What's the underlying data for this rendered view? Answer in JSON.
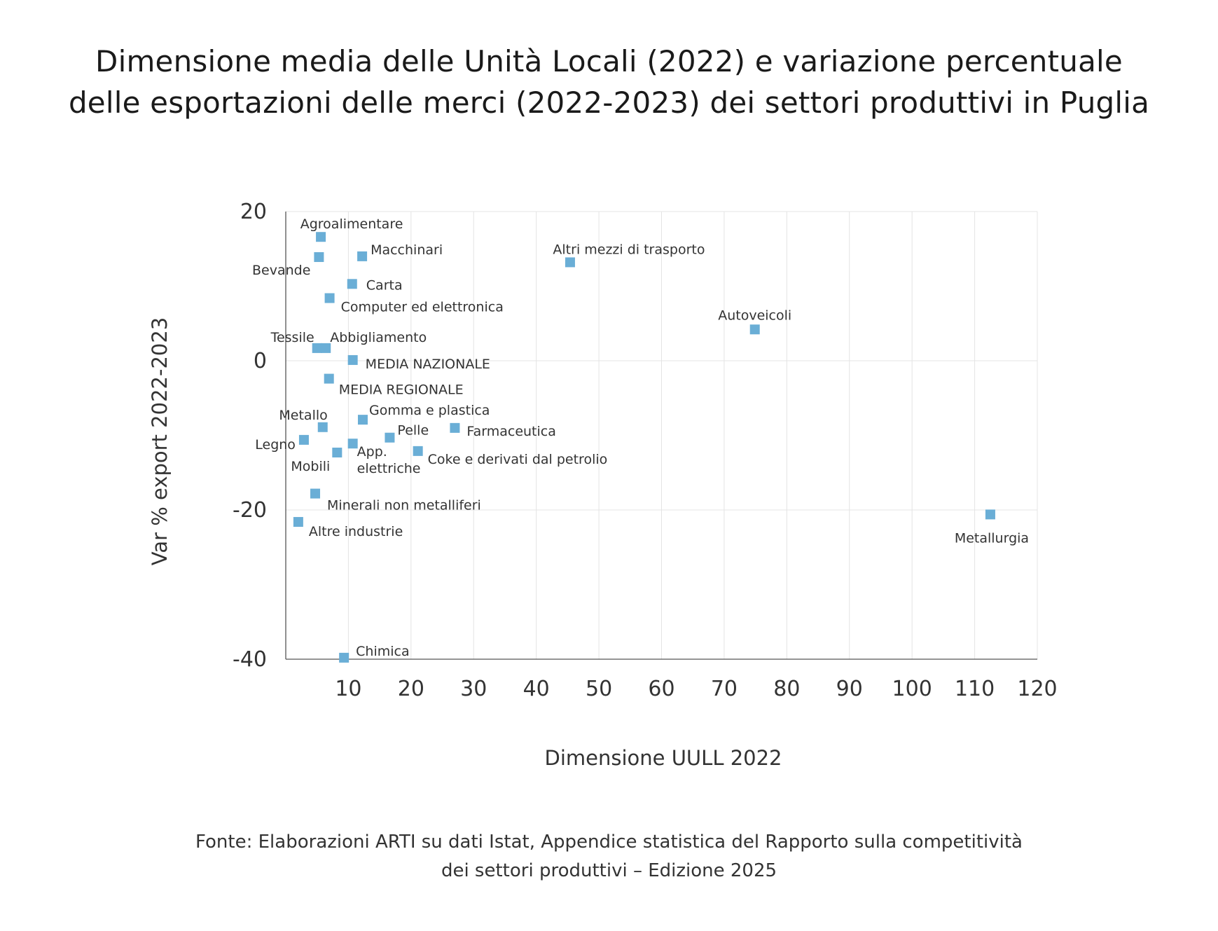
{
  "chart_data": {
    "type": "scatter",
    "title_lines": [
      "Dimensione media delle Unità Locali (2022) e variazione percentuale",
      "delle esportazioni delle merci (2022-2023) dei settori produttivi in Puglia"
    ],
    "xlabel": "Dimensione UULL 2022",
    "ylabel": "Var % export 2022-2023",
    "xlim": [
      0,
      120
    ],
    "ylim": [
      -40,
      20
    ],
    "x_ticks": [
      10,
      20,
      30,
      40,
      50,
      60,
      70,
      80,
      90,
      100,
      110,
      120
    ],
    "y_ticks": [
      20,
      0,
      -20,
      -40
    ],
    "grid": true,
    "marker_color": "#6aaed6",
    "points": [
      {
        "label": "Agroalimentare",
        "x": 5.6,
        "y": 16.6
      },
      {
        "label": "Bevande",
        "x": 5.3,
        "y": 13.9
      },
      {
        "label": "Macchinari",
        "x": 12.2,
        "y": 14.0
      },
      {
        "label": "Altri mezzi di trasporto",
        "x": 45.4,
        "y": 13.2
      },
      {
        "label": "Carta",
        "x": 10.6,
        "y": 10.3
      },
      {
        "label": "Computer ed elettronica",
        "x": 7.0,
        "y": 8.4
      },
      {
        "label": "Autoveicoli",
        "x": 74.9,
        "y": 4.2
      },
      {
        "label": "Tessile",
        "x": 5.0,
        "y": 1.7
      },
      {
        "label": "Abbigliamento",
        "x": 6.4,
        "y": 1.7
      },
      {
        "label": "MEDIA NAZIONALE",
        "x": 10.7,
        "y": 0.1
      },
      {
        "label": "MEDIA REGIONALE",
        "x": 6.9,
        "y": -2.4
      },
      {
        "label": "Gomma e plastica",
        "x": 12.3,
        "y": -7.9
      },
      {
        "label": "Metallo",
        "x": 5.9,
        "y": -8.9
      },
      {
        "label": "Pelle",
        "x": 16.6,
        "y": -10.3
      },
      {
        "label": "Farmaceutica",
        "x": 27.0,
        "y": -9.0
      },
      {
        "label": "Legno",
        "x": 2.9,
        "y": -10.6
      },
      {
        "label": "App. elettriche",
        "x": 10.7,
        "y": -11.1
      },
      {
        "label": "Mobili",
        "x": 8.2,
        "y": -12.3
      },
      {
        "label": "Coke e derivati dal petrolio",
        "x": 21.1,
        "y": -12.1
      },
      {
        "label": "Minerali non metalliferi",
        "x": 4.7,
        "y": -17.8
      },
      {
        "label": "Altre industrie",
        "x": 2.0,
        "y": -21.6
      },
      {
        "label": "Metallurgia",
        "x": 112.5,
        "y": -20.6
      },
      {
        "label": "Chimica",
        "x": 9.3,
        "y": -39.8
      }
    ],
    "source_lines": [
      "Fonte: Elaborazioni ARTI su dati Istat, Appendice statistica del Rapporto sulla competitività",
      "dei settori produttivi – Edizione 2025"
    ]
  }
}
